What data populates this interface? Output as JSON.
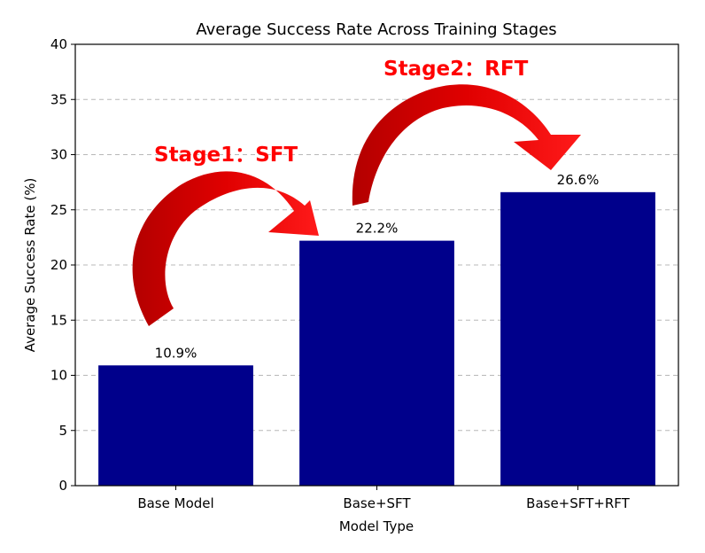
{
  "chart_data": {
    "type": "bar",
    "title": "Average Success Rate Across Training Stages",
    "xlabel": "Model Type",
    "ylabel": "Average Success Rate (%)",
    "categories": [
      "Base Model",
      "Base+SFT",
      "Base+SFT+RFT"
    ],
    "values": [
      10.9,
      22.2,
      26.6
    ],
    "value_labels": [
      "10.9%",
      "22.2%",
      "26.6%"
    ],
    "ylim": [
      0,
      40
    ],
    "yticks": [
      0,
      5,
      10,
      15,
      20,
      25,
      30,
      35,
      40
    ],
    "grid": "horizontal dashed",
    "bar_color": "#00008b",
    "annotations": [
      {
        "text": "Stage1：SFT",
        "color": "#ff0000"
      },
      {
        "text": "Stage2：RFT",
        "color": "#ff0000"
      }
    ]
  }
}
